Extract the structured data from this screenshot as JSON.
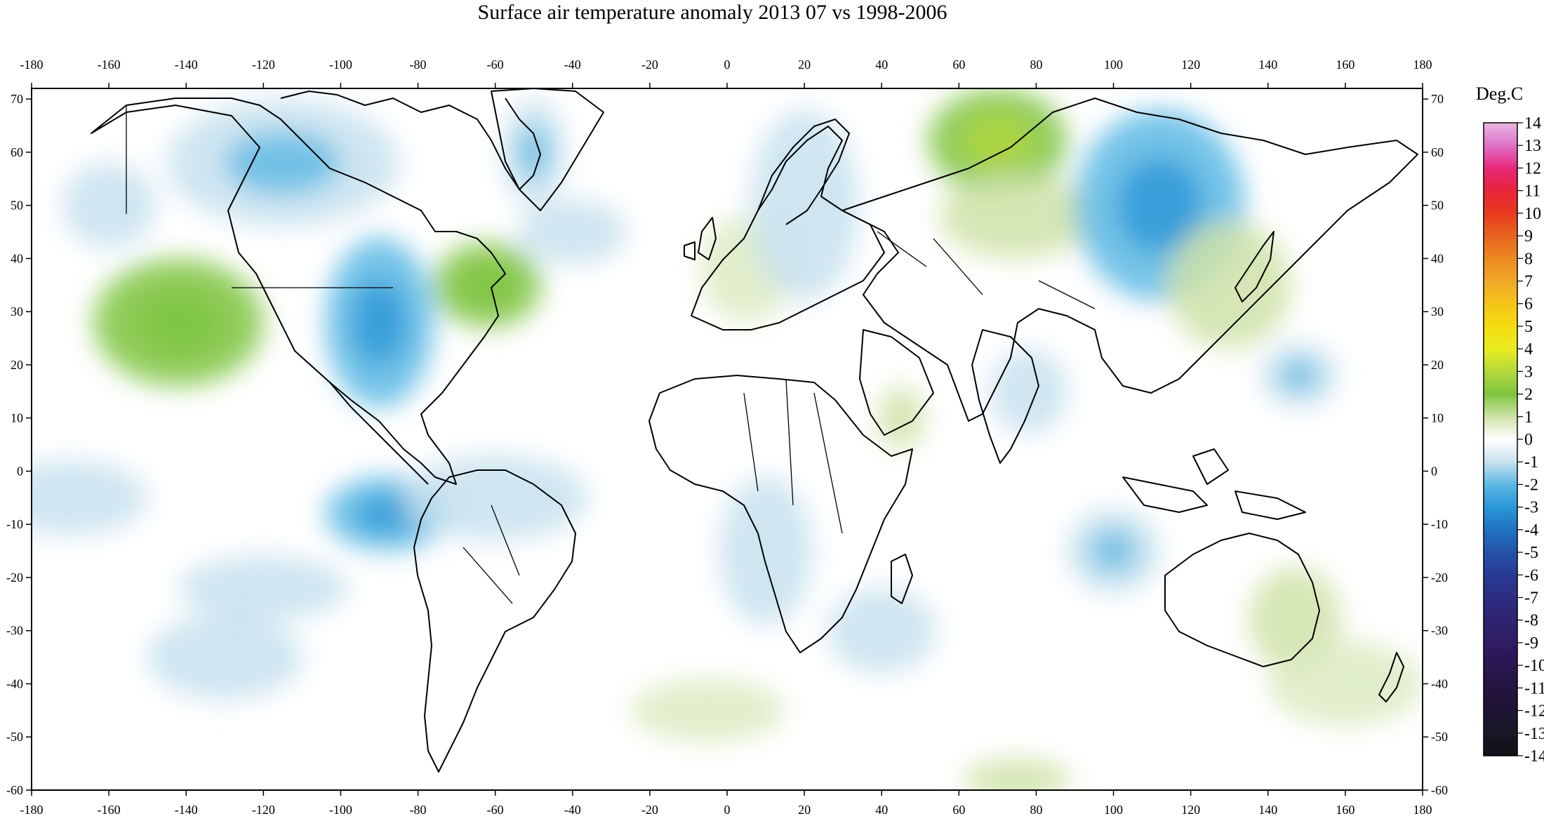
{
  "title": "Surface air temperature anomaly 2013 07 vs 1998-2006",
  "x_axis": {
    "ticks": [
      "-180",
      "-160",
      "-140",
      "-120",
      "-100",
      "-80",
      "-60",
      "-40",
      "-20",
      "0",
      "20",
      "40",
      "60",
      "80",
      "100",
      "120",
      "140",
      "160",
      "180"
    ]
  },
  "y_axis": {
    "ticks": [
      "70",
      "60",
      "50",
      "40",
      "30",
      "20",
      "10",
      "0",
      "-10",
      "-20",
      "-30",
      "-40",
      "-50",
      "-60"
    ]
  },
  "colorbar": {
    "units": "Deg.C",
    "labels": [
      "14",
      "13",
      "12",
      "11",
      "10",
      "9",
      "8",
      "7",
      "6",
      "5",
      "4",
      "3",
      "2",
      "1",
      "0",
      "-1",
      "-2",
      "-3",
      "-4",
      "-5",
      "-6",
      "-7",
      "-8",
      "-9",
      "-10",
      "-11",
      "-12",
      "-13",
      "-14"
    ],
    "colors": {
      "14": "#e6b8e0",
      "13": "#e070c8",
      "12": "#e8287a",
      "11": "#e8243a",
      "10": "#e83a20",
      "9": "#e86420",
      "8": "#ec8a20",
      "7": "#f0a828",
      "6": "#f4c418",
      "5": "#f4dc10",
      "4": "#eaec20",
      "3": "#b4d83c",
      "2": "#7ec440",
      "1": "#cfe3a8",
      "0": "#ffffff",
      "-1": "#c7e2ee",
      "-2": "#5cb8e4",
      "-3": "#2a96d6",
      "-4": "#2072c0",
      "-5": "#2452a8",
      "-6": "#283a94",
      "-7": "#2c2c82",
      "-8": "#2e2470",
      "-9": "#301c62",
      "-10": "#2a1650",
      "-11": "#241440",
      "-12": "#1e1432",
      "-13": "#181826",
      "-14": "#101018"
    }
  },
  "field": {
    "background": "#ffffff",
    "land_outline_color": "#000000",
    "anomaly_regions": [
      {
        "lon": -142,
        "lat": 28,
        "rx": 22,
        "ry": 12,
        "value": 1.5
      },
      {
        "lon": -90,
        "lat": 28,
        "rx": 14,
        "ry": 16,
        "value": -2
      },
      {
        "lon": -115,
        "lat": 58,
        "rx": 30,
        "ry": 12,
        "value": -1.5
      },
      {
        "lon": -62,
        "lat": 35,
        "rx": 14,
        "ry": 8,
        "value": 1.5
      },
      {
        "lon": -50,
        "lat": 60,
        "rx": 8,
        "ry": 10,
        "value": -1.5
      },
      {
        "lon": -40,
        "lat": 45,
        "rx": 14,
        "ry": 6,
        "value": -1
      },
      {
        "lon": -88,
        "lat": -8,
        "rx": 16,
        "ry": 7,
        "value": -2
      },
      {
        "lon": -60,
        "lat": -5,
        "rx": 24,
        "ry": 8,
        "value": -1
      },
      {
        "lon": -130,
        "lat": -35,
        "rx": 20,
        "ry": 8,
        "value": -1
      },
      {
        "lon": -120,
        "lat": -22,
        "rx": 22,
        "ry": 6,
        "value": -1
      },
      {
        "lon": 5,
        "lat": 38,
        "rx": 12,
        "ry": 10,
        "value": 0.8
      },
      {
        "lon": 20,
        "lat": 50,
        "rx": 14,
        "ry": 18,
        "value": -1
      },
      {
        "lon": 70,
        "lat": 62,
        "rx": 18,
        "ry": 10,
        "value": 2
      },
      {
        "lon": 75,
        "lat": 48,
        "rx": 20,
        "ry": 8,
        "value": 1
      },
      {
        "lon": 112,
        "lat": 50,
        "rx": 22,
        "ry": 18,
        "value": -2
      },
      {
        "lon": 130,
        "lat": 35,
        "rx": 16,
        "ry": 12,
        "value": 1
      },
      {
        "lon": 148,
        "lat": 18,
        "rx": 10,
        "ry": 6,
        "value": -1.5
      },
      {
        "lon": 147,
        "lat": -28,
        "rx": 12,
        "ry": 10,
        "value": 1.2
      },
      {
        "lon": 100,
        "lat": -15,
        "rx": 12,
        "ry": 8,
        "value": -1.5
      },
      {
        "lon": 10,
        "lat": -15,
        "rx": 12,
        "ry": 14,
        "value": -1.2
      },
      {
        "lon": 40,
        "lat": -30,
        "rx": 14,
        "ry": 8,
        "value": -1
      },
      {
        "lon": -5,
        "lat": -45,
        "rx": 20,
        "ry": 6,
        "value": 0.8
      },
      {
        "lon": 75,
        "lat": -58,
        "rx": 14,
        "ry": 4,
        "value": 1.2
      },
      {
        "lon": 160,
        "lat": -40,
        "rx": 20,
        "ry": 8,
        "value": 0.6
      },
      {
        "lon": 78,
        "lat": 15,
        "rx": 10,
        "ry": 8,
        "value": -1.2
      },
      {
        "lon": 45,
        "lat": 10,
        "rx": 6,
        "ry": 6,
        "value": 1.2
      },
      {
        "lon": -170,
        "lat": -5,
        "rx": 20,
        "ry": 7,
        "value": -1
      },
      {
        "lon": -160,
        "lat": 50,
        "rx": 12,
        "ry": 8,
        "value": -1
      }
    ]
  }
}
